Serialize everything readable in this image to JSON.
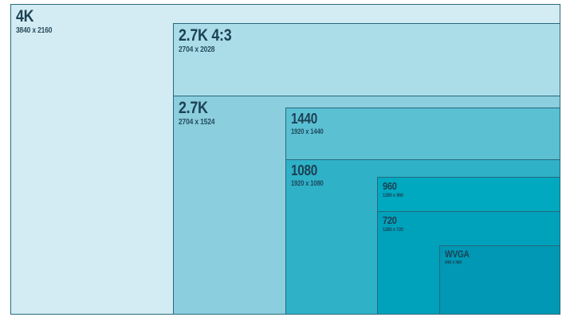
{
  "diagram": {
    "description": "Nested rectangles comparing video resolution frame sizes, all anchored to a shared bottom-right corner",
    "background_color": "#ffffff",
    "border_color": "#266a7c",
    "text_color": "#1c4154",
    "boxes": [
      {
        "id": "4k",
        "label": "4K",
        "dimensions": "3840 x 2160",
        "res_w": 3840,
        "res_h": 2160,
        "color": "#d3ebf2"
      },
      {
        "id": "2-7k-43",
        "label": "2.7K 4:3",
        "dimensions": "2704 x 2028",
        "res_w": 2704,
        "res_h": 2028,
        "color": "#abdde9"
      },
      {
        "id": "2-7k",
        "label": "2.7K",
        "dimensions": "2704 x 1524",
        "res_w": 2704,
        "res_h": 1524,
        "color": "#8bcedd"
      },
      {
        "id": "1440",
        "label": "1440",
        "dimensions": "1920 x 1440",
        "res_w": 1920,
        "res_h": 1440,
        "color": "#5cc0d3"
      },
      {
        "id": "1080",
        "label": "1080",
        "dimensions": "1920 x 1080",
        "res_w": 1920,
        "res_h": 1080,
        "color": "#2fb1c8"
      },
      {
        "id": "960",
        "label": "960",
        "dimensions": "1280 x 960",
        "res_w": 1280,
        "res_h": 960,
        "color": "#00a9bf"
      },
      {
        "id": "720",
        "label": "720",
        "dimensions": "1280 x 720",
        "res_w": 1280,
        "res_h": 720,
        "color": "#00a1bb"
      },
      {
        "id": "wvga",
        "label": "WVGA",
        "dimensions": "848 x 480",
        "res_w": 848,
        "res_h": 480,
        "color": "#0098b4"
      }
    ]
  }
}
